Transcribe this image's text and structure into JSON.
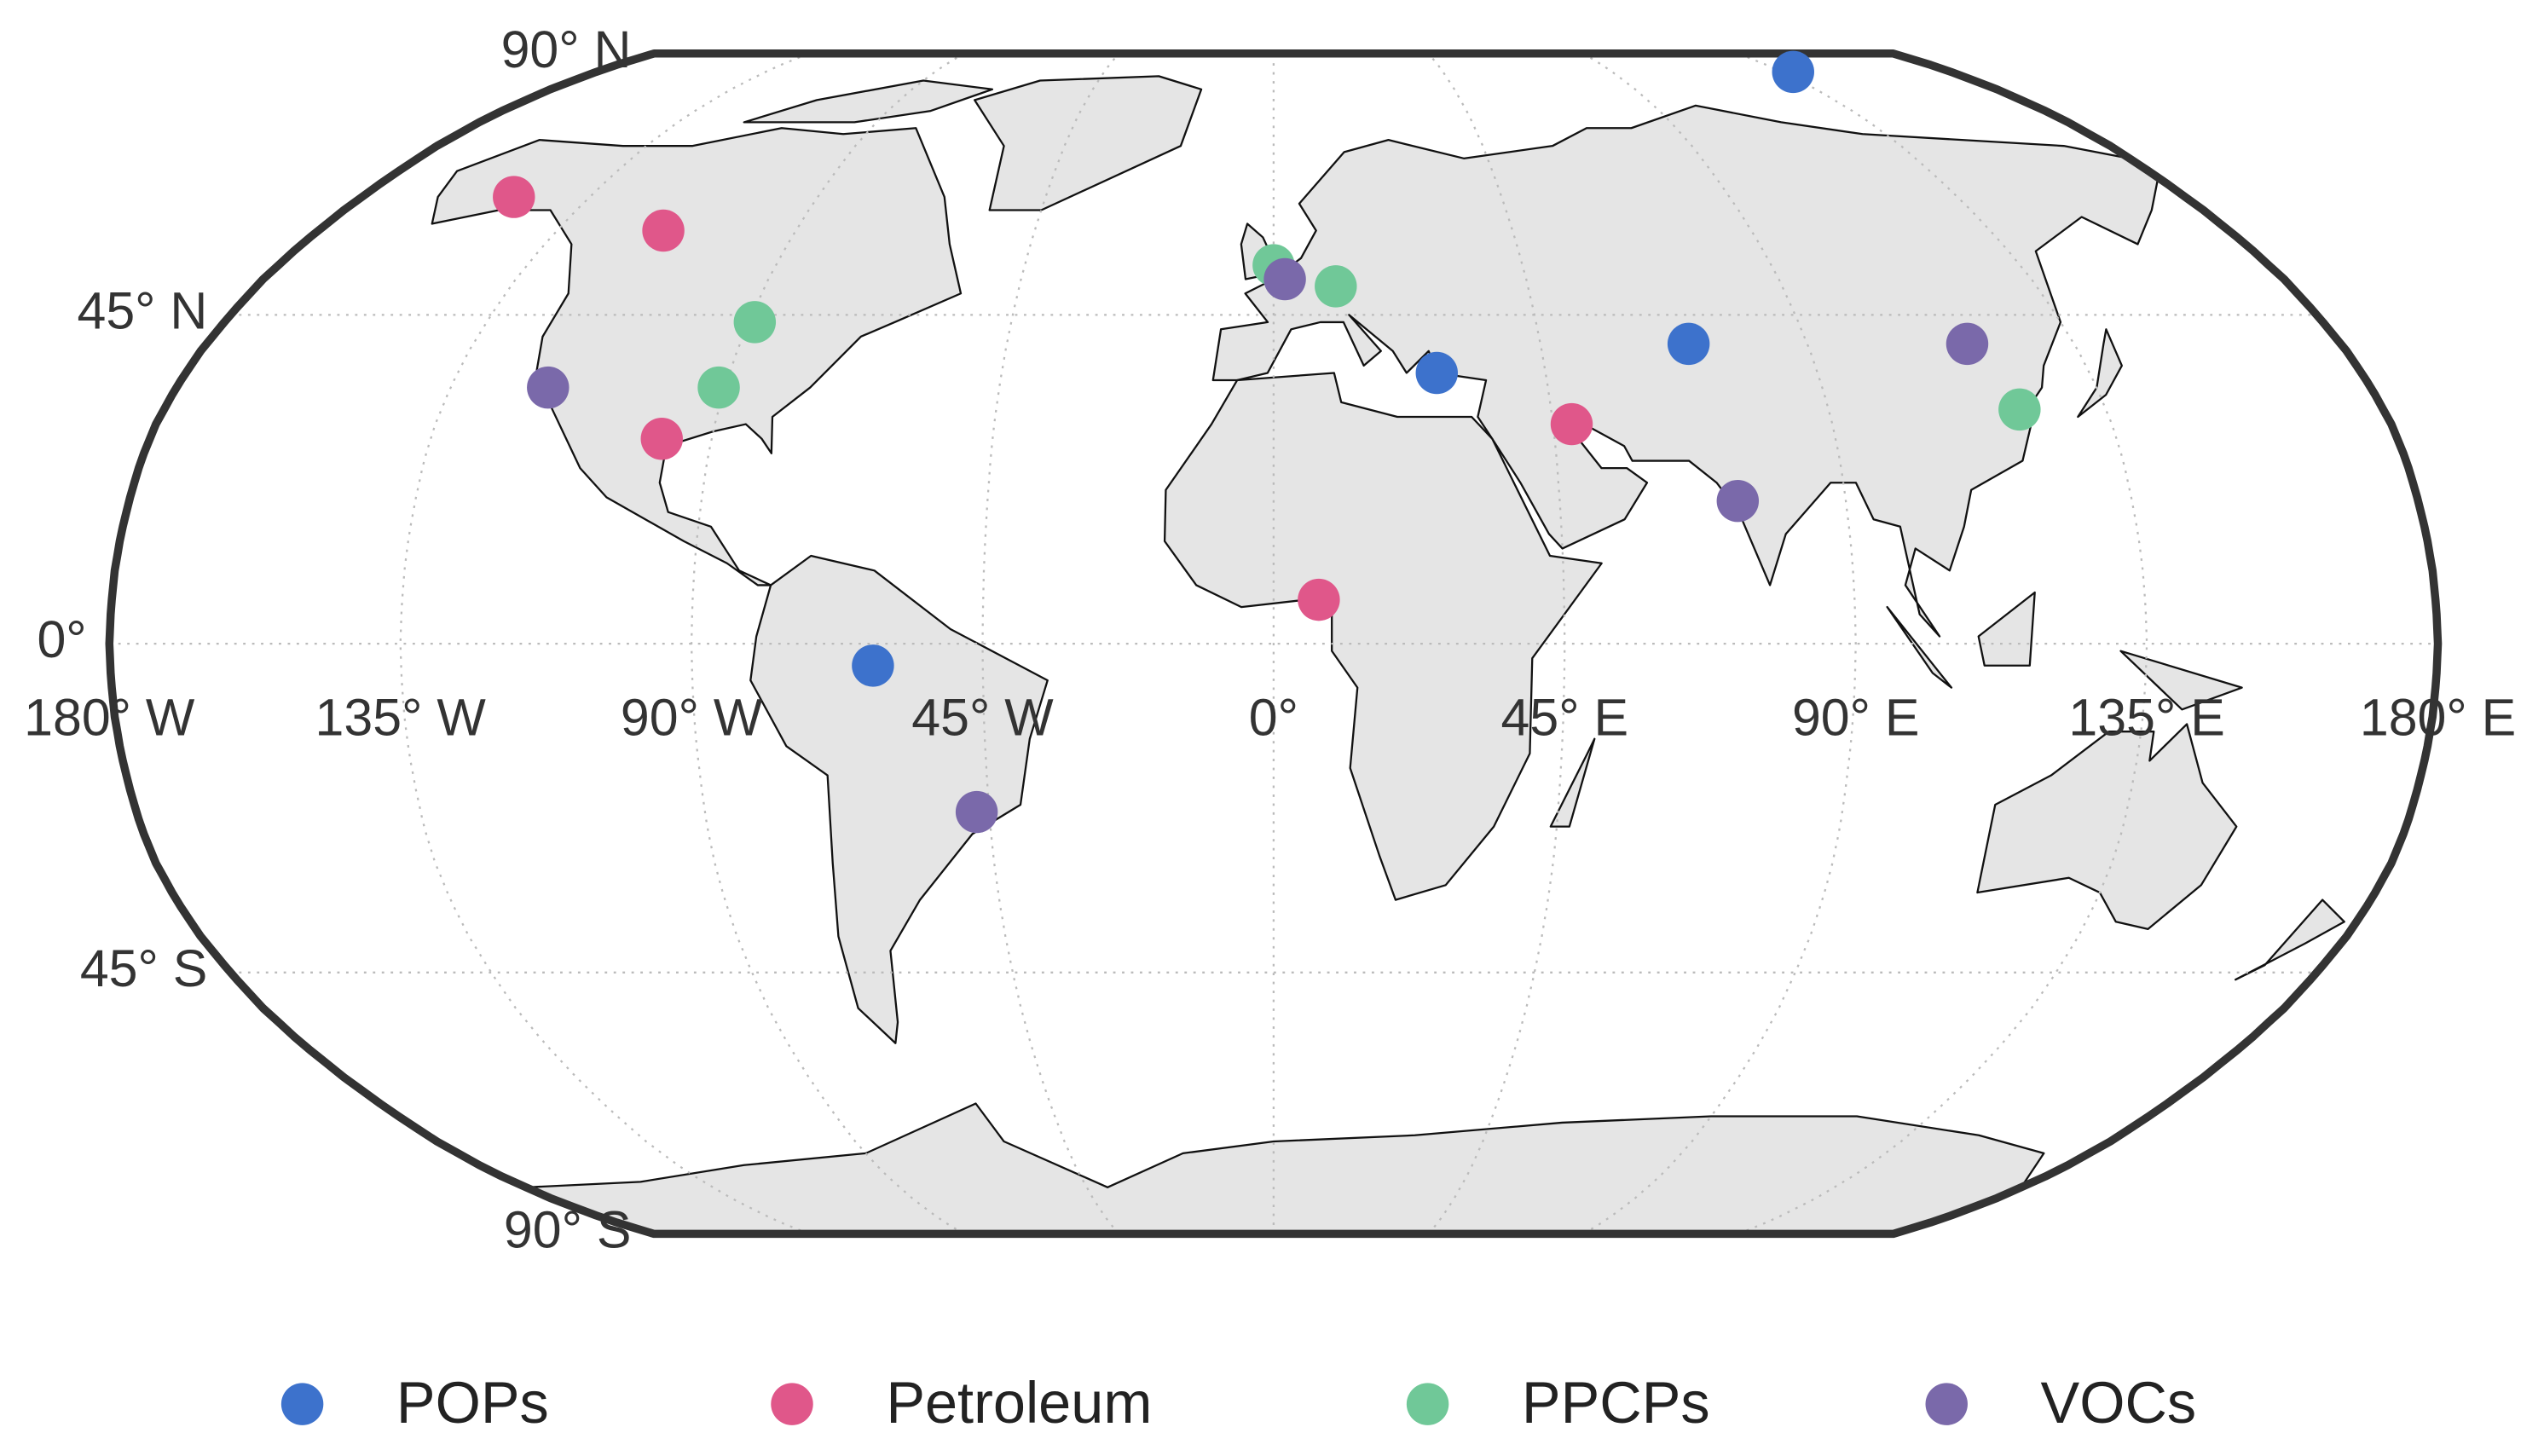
{
  "chart_data": {
    "type": "scatter",
    "projection": "robinson",
    "xlim": [
      -180,
      180
    ],
    "ylim": [
      -90,
      90
    ],
    "xticks": [
      {
        "value": -180,
        "label": "180° W"
      },
      {
        "value": -135,
        "label": "135° W"
      },
      {
        "value": -90,
        "label": "90° W"
      },
      {
        "value": -45,
        "label": "45° W"
      },
      {
        "value": 0,
        "label": "0°"
      },
      {
        "value": 45,
        "label": "45° E"
      },
      {
        "value": 90,
        "label": "90° E"
      },
      {
        "value": 135,
        "label": "135° E"
      },
      {
        "value": 180,
        "label": "180° E"
      }
    ],
    "yticks": [
      {
        "value": -90,
        "label": "90° S"
      },
      {
        "value": -45,
        "label": "45° S"
      },
      {
        "value": 0,
        "label": "0°"
      },
      {
        "value": 45,
        "label": "45° N"
      },
      {
        "value": 90,
        "label": "90° N"
      }
    ],
    "grid": true,
    "legend": "bottom",
    "series": [
      {
        "name": "POPs",
        "color": "#3d72cc",
        "lon": [
          138,
          27,
          70,
          -62
        ],
        "lat": [
          84,
          37,
          41,
          -3
        ]
      },
      {
        "name": "Petroleum",
        "color": "#e0578a",
        "lon": [
          -150,
          -115,
          -98,
          48,
          7
        ],
        "lat": [
          62,
          57,
          28,
          30,
          6
        ]
      },
      {
        "name": "PPCPs",
        "color": "#70c898",
        "lon": [
          0,
          11,
          -89,
          -91,
          121
        ],
        "lat": [
          52,
          49,
          44,
          35,
          32
        ]
      },
      {
        "name": "VOCs",
        "color": "#7a69aa",
        "lon": [
          -119,
          2,
          117,
          73,
          -47
        ],
        "lat": [
          35,
          50,
          41,
          19.5,
          -23
        ]
      }
    ]
  }
}
